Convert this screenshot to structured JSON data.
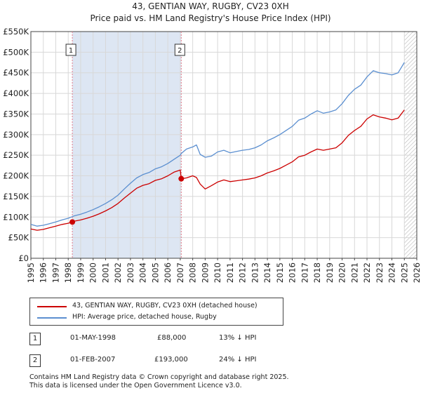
{
  "title": "43, GENTIAN WAY, RUGBY, CV23 0XH",
  "subtitle": "Price paid vs. HM Land Registry's House Price Index (HPI)",
  "colors": {
    "property": "#cc0000",
    "hpi": "#5b8fd0",
    "shade": "#dde6f3",
    "marker_line": "#e07a8a"
  },
  "legend": [
    {
      "label": "43, GENTIAN WAY, RUGBY, CV23 0XH (detached house)",
      "color": "#cc0000"
    },
    {
      "label": "HPI: Average price, detached house, Rugby",
      "color": "#5b8fd0"
    }
  ],
  "transactions": [
    {
      "num": "1",
      "date": "01-MAY-1998",
      "price": "£88,000",
      "hpi_diff": "13% ↓ HPI"
    },
    {
      "num": "2",
      "date": "01-FEB-2007",
      "price": "£193,000",
      "hpi_diff": "24% ↓ HPI"
    }
  ],
  "footer": [
    "Contains HM Land Registry data © Crown copyright and database right 2025.",
    "This data is licensed under the Open Government Licence v3.0."
  ],
  "chart_data": {
    "type": "line",
    "xlim": [
      1995,
      2026
    ],
    "ylim": [
      0,
      550000
    ],
    "x_ticks": [
      "1995",
      "1996",
      "1997",
      "1998",
      "1999",
      "2000",
      "2001",
      "2002",
      "2003",
      "2004",
      "2005",
      "2006",
      "2007",
      "2008",
      "2009",
      "2010",
      "2011",
      "2012",
      "2013",
      "2014",
      "2015",
      "2016",
      "2017",
      "2018",
      "2019",
      "2020",
      "2021",
      "2022",
      "2023",
      "2024",
      "2025",
      "2026"
    ],
    "y_ticks": [
      {
        "value": 0,
        "label": "£0"
      },
      {
        "value": 50000,
        "label": "£50K"
      },
      {
        "value": 100000,
        "label": "£100K"
      },
      {
        "value": 150000,
        "label": "£150K"
      },
      {
        "value": 200000,
        "label": "£200K"
      },
      {
        "value": 250000,
        "label": "£250K"
      },
      {
        "value": 300000,
        "label": "£300K"
      },
      {
        "value": 350000,
        "label": "£350K"
      },
      {
        "value": 400000,
        "label": "£400K"
      },
      {
        "value": 450000,
        "label": "£450K"
      },
      {
        "value": 500000,
        "label": "£500K"
      },
      {
        "value": 550000,
        "label": "£550K"
      }
    ],
    "grid": true,
    "shaded_range": [
      1998.33,
      2007.08
    ],
    "forecast_start": 2025.0,
    "series": [
      {
        "name": "HPI: Average price, detached house, Rugby",
        "x": [
          1995,
          1995.5,
          1996,
          1996.5,
          1997,
          1997.5,
          1998,
          1998.33,
          1998.5,
          1999,
          1999.5,
          2000,
          2000.5,
          2001,
          2001.5,
          2002,
          2002.5,
          2003,
          2003.5,
          2004,
          2004.5,
          2005,
          2005.5,
          2006,
          2006.5,
          2007,
          2007.08,
          2007.5,
          2008,
          2008.3,
          2008.6,
          2009,
          2009.5,
          2010,
          2010.5,
          2011,
          2011.5,
          2012,
          2012.5,
          2013,
          2013.5,
          2014,
          2014.5,
          2015,
          2015.5,
          2016,
          2016.5,
          2017,
          2017.5,
          2018,
          2018.5,
          2019,
          2019.5,
          2020,
          2020.5,
          2021,
          2021.5,
          2022,
          2022.5,
          2023,
          2023.5,
          2024,
          2024.5,
          2025
        ],
        "y": [
          82000,
          78000,
          80000,
          84000,
          88000,
          93000,
          97000,
          101000,
          103000,
          107000,
          112000,
          118000,
          125000,
          133000,
          142000,
          153000,
          168000,
          182000,
          195000,
          203000,
          208000,
          217000,
          222000,
          230000,
          240000,
          250000,
          254000,
          265000,
          270000,
          275000,
          252000,
          245000,
          248000,
          258000,
          262000,
          256000,
          259000,
          262000,
          264000,
          268000,
          275000,
          285000,
          292000,
          300000,
          310000,
          320000,
          335000,
          340000,
          350000,
          358000,
          352000,
          355000,
          360000,
          375000,
          395000,
          410000,
          420000,
          440000,
          455000,
          450000,
          448000,
          445000,
          450000,
          475000
        ]
      },
      {
        "name": "43, GENTIAN WAY, RUGBY, CV23 0XH (detached house)",
        "x": [
          1995,
          1995.5,
          1996,
          1996.5,
          1997,
          1997.5,
          1998,
          1998.33,
          1998.5,
          1999,
          1999.5,
          2000,
          2000.5,
          2001,
          2001.5,
          2002,
          2002.5,
          2003,
          2003.5,
          2004,
          2004.5,
          2005,
          2005.5,
          2006,
          2006.5,
          2007,
          2007.08,
          2007.5,
          2008,
          2008.3,
          2008.6,
          2009,
          2009.5,
          2010,
          2010.5,
          2011,
          2011.5,
          2012,
          2012.5,
          2013,
          2013.5,
          2014,
          2014.5,
          2015,
          2015.5,
          2016,
          2016.5,
          2017,
          2017.5,
          2018,
          2018.5,
          2019,
          2019.5,
          2020,
          2020.5,
          2021,
          2021.5,
          2022,
          2022.5,
          2023,
          2023.5,
          2024,
          2024.5,
          2025
        ],
        "y": [
          71000,
          68000,
          70000,
          74000,
          78000,
          82000,
          85000,
          88000,
          90000,
          93000,
          97000,
          102000,
          108000,
          115000,
          123000,
          133000,
          146000,
          158000,
          170000,
          177000,
          181000,
          189000,
          193000,
          200000,
          209000,
          214000,
          193000,
          195000,
          200000,
          196000,
          180000,
          168000,
          176000,
          185000,
          190000,
          186000,
          188000,
          190000,
          192000,
          195000,
          200000,
          207000,
          212000,
          218000,
          226000,
          234000,
          246000,
          250000,
          258000,
          265000,
          262000,
          265000,
          268000,
          280000,
          298000,
          310000,
          320000,
          338000,
          348000,
          343000,
          340000,
          336000,
          340000,
          360000
        ]
      }
    ],
    "sales": [
      {
        "label": "1",
        "x": 1998.33,
        "y": 88000
      },
      {
        "label": "2",
        "x": 2007.08,
        "y": 193000
      }
    ]
  }
}
